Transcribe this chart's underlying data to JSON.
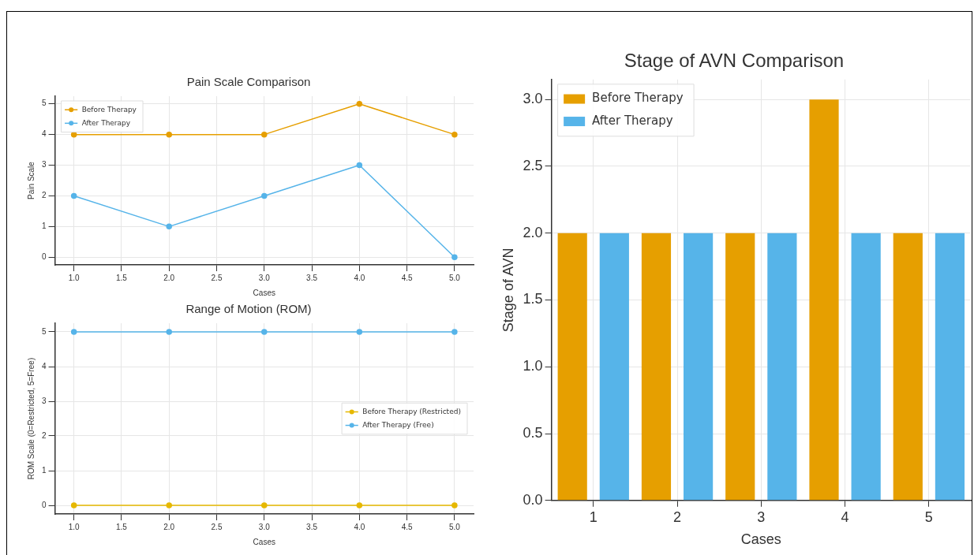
{
  "chart_data": [
    {
      "type": "line",
      "title": "Pain Scale Comparison",
      "xlabel": "Cases",
      "ylabel": "Pain Scale",
      "x": [
        1,
        2,
        3,
        4,
        5
      ],
      "series": [
        {
          "name": "Before Therapy",
          "color": "#e69f00",
          "values": [
            4,
            4,
            4,
            5,
            4
          ]
        },
        {
          "name": "After Therapy",
          "color": "#56b4e9",
          "values": [
            2,
            1,
            2,
            3,
            0
          ]
        }
      ],
      "xlim": [
        0.8,
        5.2
      ],
      "xticks": [
        {
          "value": 1,
          "label": "1.0"
        },
        {
          "value": 1.5,
          "label": "1.5"
        },
        {
          "value": 2,
          "label": "2.0"
        },
        {
          "value": 2.5,
          "label": "2.5"
        },
        {
          "value": 3,
          "label": "3.0"
        },
        {
          "value": 3.5,
          "label": "3.5"
        },
        {
          "value": 4,
          "label": "4.0"
        },
        {
          "value": 4.5,
          "label": "4.5"
        },
        {
          "value": 5,
          "label": "5.0"
        }
      ],
      "ylim": [
        -0.25,
        5.25
      ],
      "yticks": [
        0,
        1,
        2,
        3,
        4,
        5
      ],
      "grid": true,
      "legend": "top left",
      "marker": "circle"
    },
    {
      "type": "line",
      "title": "Range of Motion (ROM)",
      "xlabel": "Cases",
      "ylabel": "ROM Scale (0=Restricted, 5=Free)",
      "x": [
        1,
        2,
        3,
        4,
        5
      ],
      "series": [
        {
          "name": "Before Therapy (Restricted)",
          "color": "#e6b800",
          "values": [
            0,
            0,
            0,
            0,
            0
          ]
        },
        {
          "name": "After Therapy (Free)",
          "color": "#56b4e9",
          "values": [
            5,
            5,
            5,
            5,
            5
          ]
        }
      ],
      "xlim": [
        0.8,
        5.2
      ],
      "xticks": [
        {
          "value": 1,
          "label": "1.0"
        },
        {
          "value": 1.5,
          "label": "1.5"
        },
        {
          "value": 2,
          "label": "2.0"
        },
        {
          "value": 2.5,
          "label": "2.5"
        },
        {
          "value": 3,
          "label": "3.0"
        },
        {
          "value": 3.5,
          "label": "3.5"
        },
        {
          "value": 4,
          "label": "4.0"
        },
        {
          "value": 4.5,
          "label": "4.5"
        },
        {
          "value": 5,
          "label": "5.0"
        }
      ],
      "ylim": [
        -0.25,
        5.25
      ],
      "yticks": [
        0,
        1,
        2,
        3,
        4,
        5
      ],
      "grid": true,
      "legend": "right",
      "marker": "circle"
    },
    {
      "type": "bar",
      "title": "Stage of AVN Comparison",
      "xlabel": "Cases",
      "ylabel": "Stage of AVN",
      "categories": [
        "1",
        "2",
        "3",
        "4",
        "5"
      ],
      "series": [
        {
          "name": "Before Therapy",
          "color": "#e69f00",
          "values": [
            2,
            2,
            2,
            3,
            2
          ]
        },
        {
          "name": "After Therapy",
          "color": "#56b4e9",
          "values": [
            2,
            2,
            2,
            2,
            2
          ]
        }
      ],
      "ylim": [
        0,
        3.15
      ],
      "yticks": [
        {
          "value": 0,
          "label": "0.0"
        },
        {
          "value": 0.5,
          "label": "0.5"
        },
        {
          "value": 1,
          "label": "1.0"
        },
        {
          "value": 1.5,
          "label": "1.5"
        },
        {
          "value": 2,
          "label": "2.0"
        },
        {
          "value": 2.5,
          "label": "2.5"
        },
        {
          "value": 3,
          "label": "3.0"
        }
      ],
      "grid": true,
      "legend": "top left"
    }
  ]
}
